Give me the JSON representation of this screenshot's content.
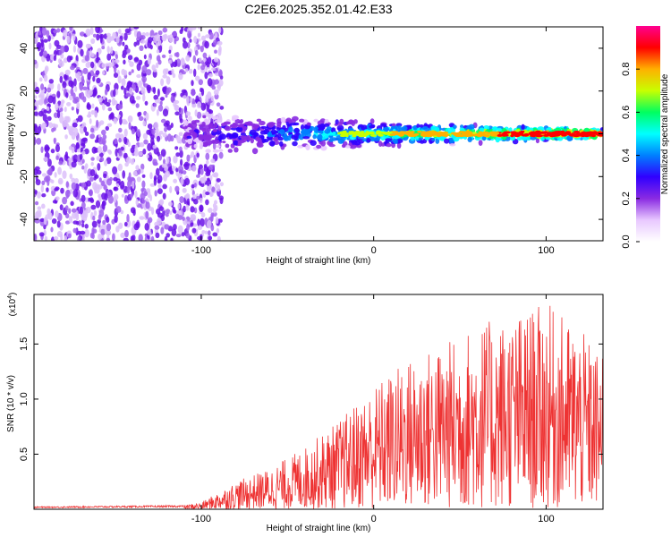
{
  "title": "C2E6.2025.352.01.42.E33",
  "chart_data": [
    {
      "type": "heatmap",
      "name": "spectrogram",
      "xlabel": "Height of straight line (km)",
      "ylabel": "Frequency (Hz)",
      "xlim": [
        -197,
        133
      ],
      "ylim": [
        -50,
        50
      ],
      "x_ticks": [
        -100,
        0,
        100
      ],
      "y_ticks": [
        -40,
        -20,
        0,
        20,
        40
      ],
      "x_tick_labels": [
        "-100",
        "0",
        "100"
      ],
      "y_tick_labels": [
        "-40",
        "-20",
        "0",
        "20",
        "40"
      ],
      "colorbar": {
        "label": "Normalized spectral amplitude",
        "range": [
          0,
          1
        ],
        "ticks": [
          0.0,
          0.2,
          0.4,
          0.6,
          0.8
        ],
        "tick_labels": [
          "0.0",
          "0.2",
          "0.4",
          "0.6",
          "0.8"
        ],
        "colors": [
          "#ffffff",
          "#e8c8ff",
          "#8a2be2",
          "#3000ff",
          "#0080ff",
          "#00ffff",
          "#00ff60",
          "#c8ff00",
          "#ffb000",
          "#ff0000",
          "#ff0090"
        ]
      },
      "features": {
        "noise_region_x": [
          -197,
          -100
        ],
        "signal_line_frequency": 0,
        "signal_start_x": -110
      }
    },
    {
      "type": "line",
      "name": "snr",
      "xlabel": "Height of straight line (km)",
      "ylabel": "SNR (10 * v/v)",
      "scale_label": "(x10",
      "scale_exp": "4",
      "scale_close": ")",
      "xlim": [
        -197,
        133
      ],
      "ylim": [
        0,
        1.95
      ],
      "x_ticks": [
        -100,
        0,
        100
      ],
      "y_ticks": [
        0.5,
        1.0,
        1.5
      ],
      "x_tick_labels": [
        "-100",
        "0",
        "100"
      ],
      "y_tick_labels": [
        "0.5",
        "1.0",
        "1.5"
      ],
      "color": "#ee3333",
      "envelope_x": [
        -197,
        -110,
        -100,
        -80,
        -60,
        -40,
        -20,
        0,
        20,
        40,
        60,
        80,
        100,
        120,
        133
      ],
      "envelope_y": [
        0.02,
        0.03,
        0.05,
        0.2,
        0.3,
        0.45,
        0.65,
        0.9,
        1.1,
        1.2,
        1.35,
        1.4,
        1.5,
        1.3,
        1.1
      ]
    }
  ]
}
